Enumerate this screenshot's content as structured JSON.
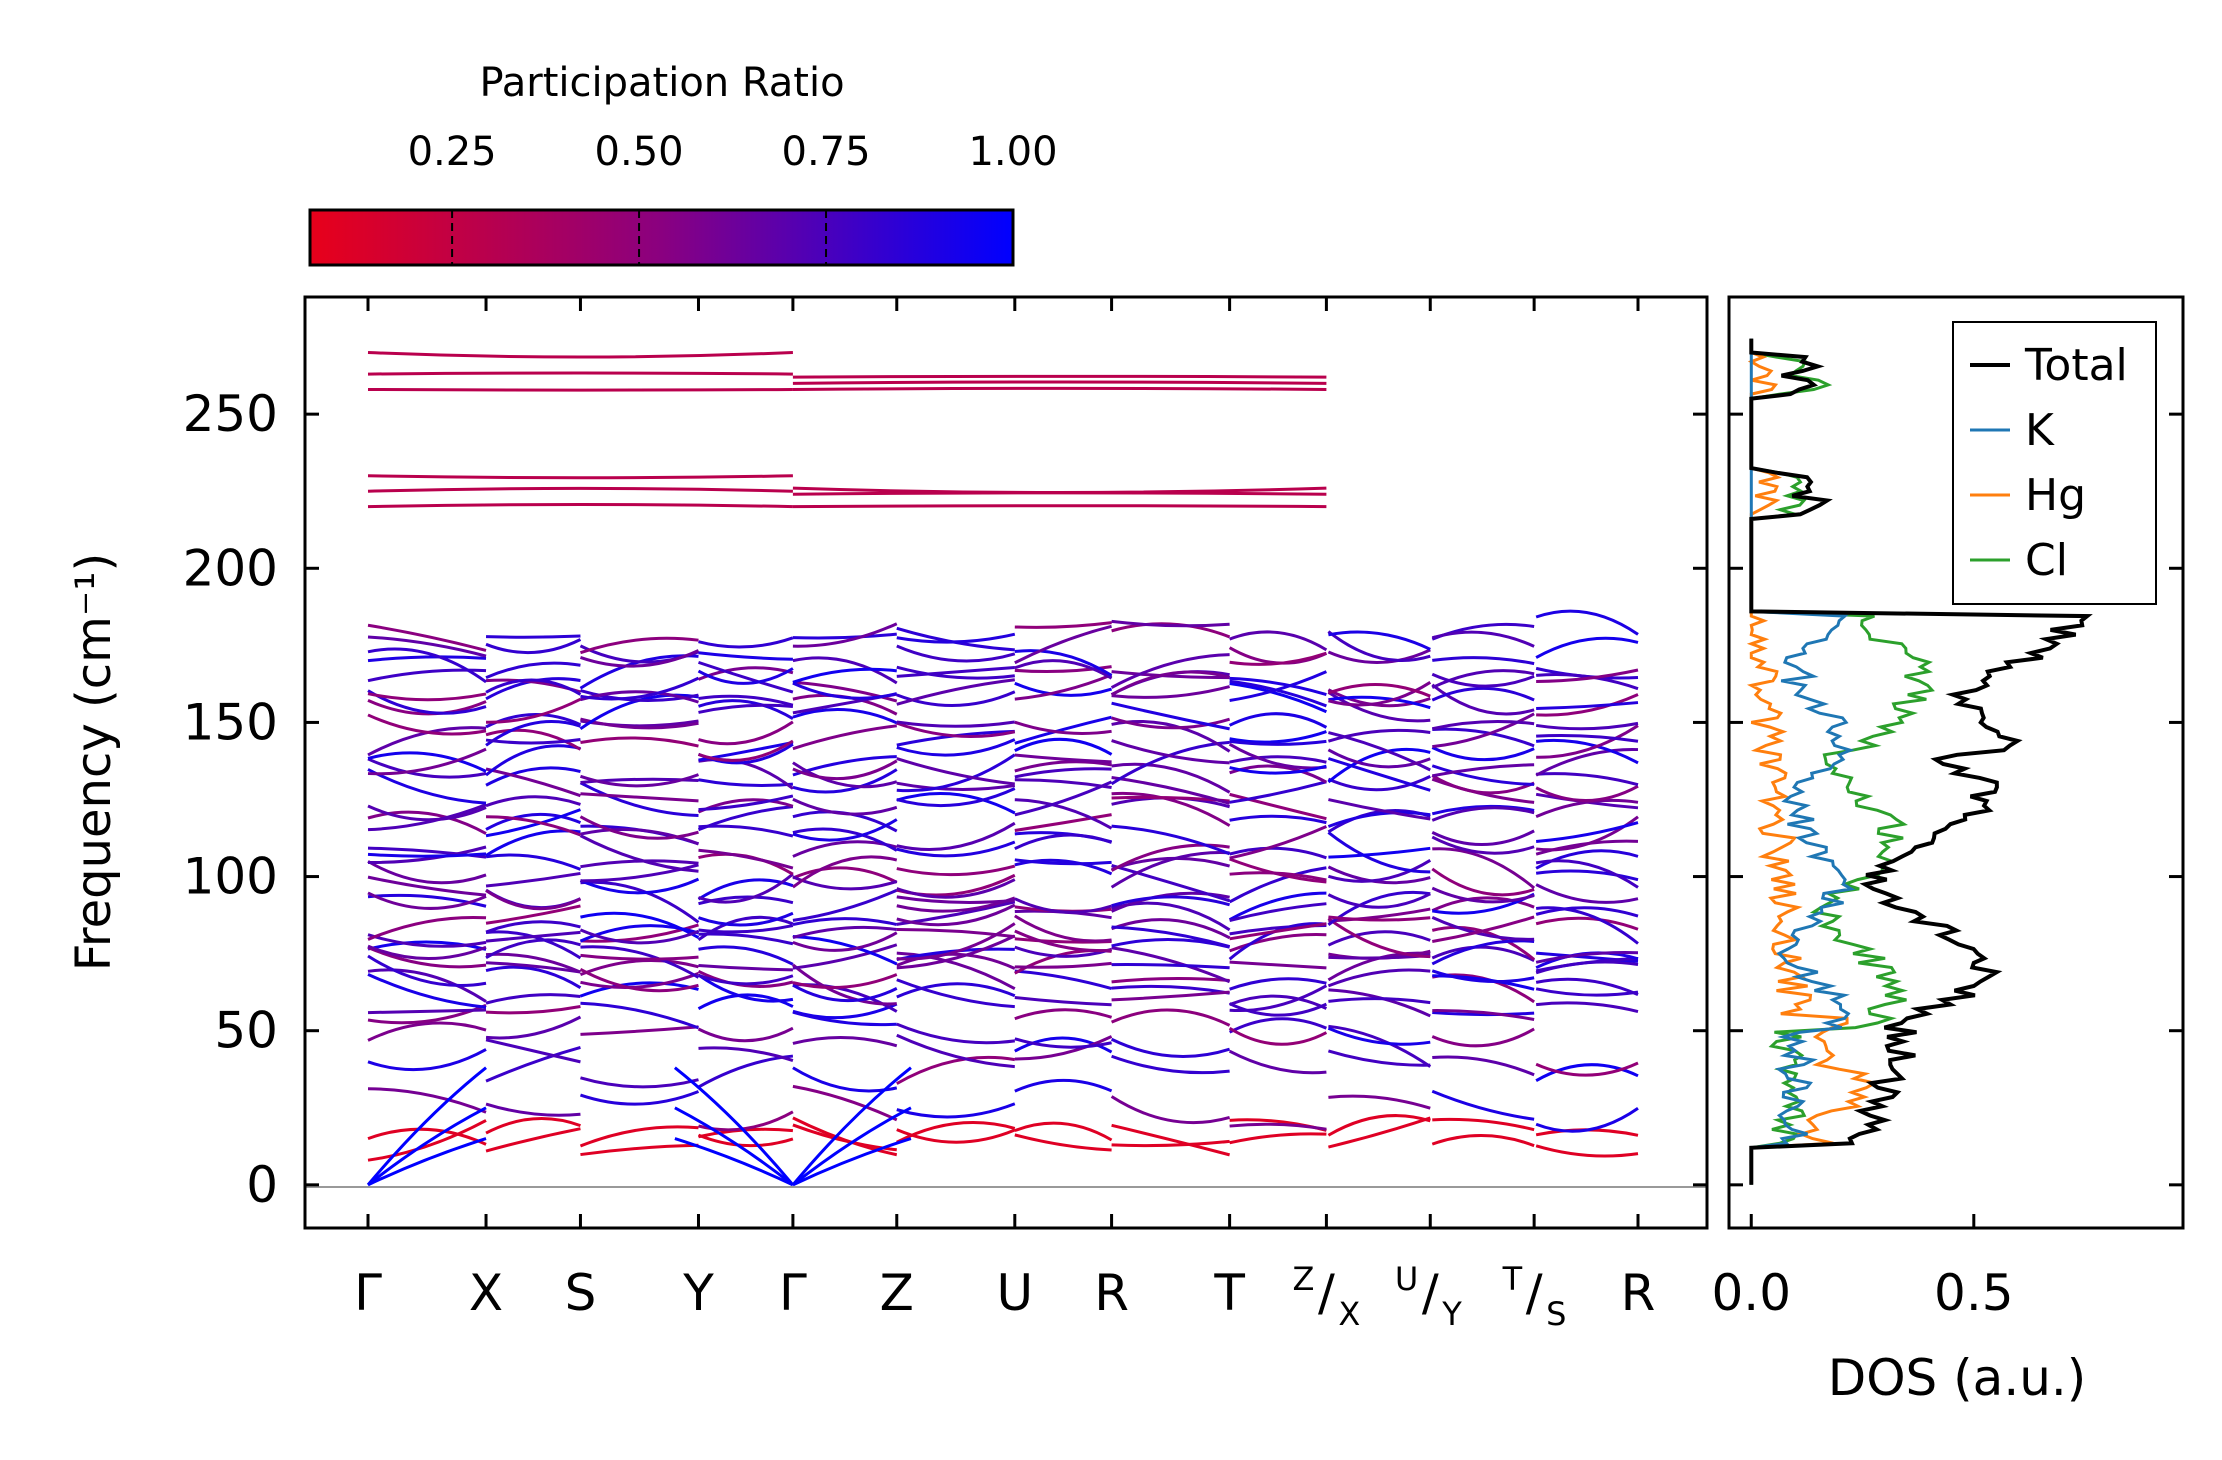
{
  "chart_data": [
    {
      "type": "line",
      "title": "",
      "xlabel": "",
      "ylabel": "Frequency (cm⁻¹)",
      "ylim": [
        -14,
        288
      ],
      "yticks": [
        0,
        50,
        100,
        150,
        200,
        250
      ],
      "grid": false,
      "path_labels": [
        {
          "name": "Γ",
          "pos": 0.0
        },
        {
          "name": "X",
          "pos": 0.5
        },
        {
          "name": "S",
          "pos": 0.9
        },
        {
          "name": "Y",
          "pos": 1.4
        },
        {
          "name": "Γ",
          "pos": 1.8
        },
        {
          "name": "Z",
          "pos": 2.24
        },
        {
          "name": "U",
          "pos": 2.74
        },
        {
          "name": "R",
          "pos": 3.15
        },
        {
          "name": "T",
          "pos": 3.65
        },
        {
          "name": "Z|X",
          "top": "Z",
          "bottom": "X",
          "pos": 4.06
        },
        {
          "name": "U|Y",
          "top": "U",
          "bottom": "Y",
          "pos": 4.5
        },
        {
          "name": "T|S",
          "top": "T",
          "bottom": "S",
          "pos": 4.94
        },
        {
          "name": "R",
          "pos": 5.38
        }
      ],
      "flat_bands": [
        {
          "segment": [
            0.0,
            1.8
          ],
          "values": [
            258,
            263,
            270
          ]
        },
        {
          "segment": [
            1.8,
            4.06
          ],
          "values": [
            258,
            262,
            260
          ]
        },
        {
          "segment": [
            0.0,
            1.8
          ],
          "values": [
            220,
            225,
            230
          ]
        },
        {
          "segment": [
            1.8,
            4.06
          ],
          "values": [
            220,
            224,
            226
          ]
        }
      ],
      "band_levels": [
        15,
        16,
        25,
        38,
        45,
        52,
        58,
        63,
        65,
        70,
        72,
        76,
        78,
        80,
        85,
        88,
        92,
        97,
        100,
        103,
        108,
        113,
        117,
        120,
        125,
        128,
        133,
        137,
        140,
        145,
        148,
        153,
        156,
        159,
        162,
        165,
        168,
        175,
        178
      ],
      "acoustic_modes": {
        "gamma_points": [
          0.0,
          1.8
        ],
        "end_values": [
          15,
          25,
          38
        ]
      },
      "colorbar": {
        "label": "Participation Ratio",
        "ticks": [
          "0.25",
          "0.50",
          "0.75",
          "1.00"
        ],
        "range": [
          0.06,
          1.0
        ],
        "low_color": "#e8001a",
        "high_color": "#0000ff"
      }
    },
    {
      "type": "line",
      "title": "",
      "xlabel": "DOS (a.u.)",
      "ylabel": "",
      "xlim": [
        -0.05,
        0.97
      ],
      "xticks": [
        "0.0",
        "0.5"
      ],
      "legend_position": "top-right",
      "series": [
        {
          "name": "Total",
          "color": "#000000"
        },
        {
          "name": "K",
          "color": "#1f77b4"
        },
        {
          "name": "Hg",
          "color": "#ff7f0e"
        },
        {
          "name": "Cl",
          "color": "#2ca02c"
        }
      ]
    }
  ]
}
